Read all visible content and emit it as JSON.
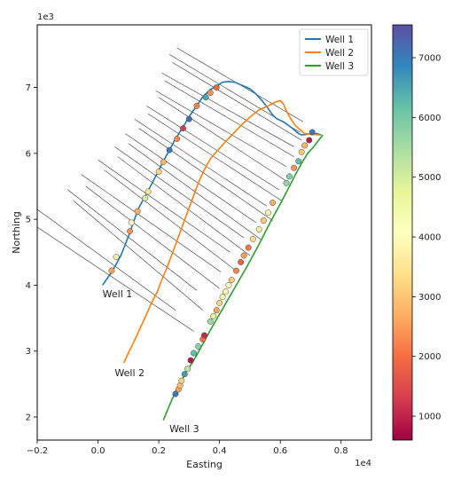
{
  "chart_data": {
    "type": "line",
    "xlabel": "Easting",
    "ylabel": "Northing",
    "x_offset_label": "1e4",
    "y_offset_label": "1e3",
    "xlim": [
      -0.2,
      0.9
    ],
    "ylim": [
      1.65,
      7.95
    ],
    "xticks": [
      -0.2,
      0.0,
      0.2,
      0.4,
      0.6,
      0.8
    ],
    "xtick_labels": [
      "−0.2",
      "0.0",
      "0.2",
      "0.4",
      "0.6",
      "0.8"
    ],
    "yticks": [
      2,
      3,
      4,
      5,
      6,
      7
    ],
    "ytick_labels": [
      "2",
      "3",
      "4",
      "5",
      "6",
      "7"
    ],
    "legend_position": "top-right",
    "series": [
      {
        "name": "Well 1",
        "color": "#1f77b4",
        "label": "Well 1",
        "points": [
          [
            0.015,
            4.0
          ],
          [
            0.03,
            4.1
          ],
          [
            0.045,
            4.2
          ],
          [
            0.06,
            4.32
          ],
          [
            0.075,
            4.45
          ],
          [
            0.09,
            4.62
          ],
          [
            0.105,
            4.8
          ],
          [
            0.12,
            5.0
          ],
          [
            0.135,
            5.18
          ],
          [
            0.155,
            5.35
          ],
          [
            0.175,
            5.52
          ],
          [
            0.195,
            5.7
          ],
          [
            0.215,
            5.88
          ],
          [
            0.235,
            6.05
          ],
          [
            0.255,
            6.22
          ],
          [
            0.28,
            6.4
          ],
          [
            0.3,
            6.56
          ],
          [
            0.325,
            6.72
          ],
          [
            0.345,
            6.86
          ],
          [
            0.37,
            6.97
          ],
          [
            0.39,
            7.02
          ],
          [
            0.41,
            7.08
          ],
          [
            0.43,
            7.09
          ],
          [
            0.45,
            7.08
          ],
          [
            0.47,
            7.04
          ],
          [
            0.5,
            6.98
          ],
          [
            0.52,
            6.9
          ],
          [
            0.54,
            6.8
          ],
          [
            0.56,
            6.68
          ],
          [
            0.575,
            6.58
          ],
          [
            0.59,
            6.52
          ],
          [
            0.61,
            6.48
          ],
          [
            0.64,
            6.38
          ],
          [
            0.66,
            6.3
          ],
          [
            0.67,
            6.28
          ],
          [
            0.69,
            6.29
          ],
          [
            0.72,
            6.3
          ],
          [
            0.735,
            6.28
          ]
        ]
      },
      {
        "name": "Well 2",
        "color": "#ff7f0e",
        "label": "Well 2",
        "points": [
          [
            0.085,
            2.82
          ],
          [
            0.1,
            2.97
          ],
          [
            0.12,
            3.16
          ],
          [
            0.14,
            3.36
          ],
          [
            0.16,
            3.56
          ],
          [
            0.175,
            3.72
          ],
          [
            0.195,
            3.9
          ],
          [
            0.21,
            4.08
          ],
          [
            0.23,
            4.3
          ],
          [
            0.25,
            4.55
          ],
          [
            0.27,
            4.8
          ],
          [
            0.29,
            5.05
          ],
          [
            0.31,
            5.3
          ],
          [
            0.33,
            5.55
          ],
          [
            0.35,
            5.75
          ],
          [
            0.37,
            5.92
          ],
          [
            0.395,
            6.05
          ],
          [
            0.42,
            6.18
          ],
          [
            0.445,
            6.3
          ],
          [
            0.47,
            6.42
          ],
          [
            0.5,
            6.55
          ],
          [
            0.53,
            6.66
          ],
          [
            0.56,
            6.72
          ],
          [
            0.585,
            6.78
          ],
          [
            0.6,
            6.8
          ],
          [
            0.61,
            6.75
          ],
          [
            0.62,
            6.65
          ],
          [
            0.635,
            6.52
          ],
          [
            0.65,
            6.42
          ],
          [
            0.665,
            6.36
          ],
          [
            0.68,
            6.3
          ],
          [
            0.7,
            6.29
          ],
          [
            0.73,
            6.28
          ]
        ]
      },
      {
        "name": "Well 3",
        "color": "#2ca02c",
        "label": "Well 3",
        "points": [
          [
            0.215,
            1.95
          ],
          [
            0.23,
            2.12
          ],
          [
            0.245,
            2.28
          ],
          [
            0.26,
            2.42
          ],
          [
            0.275,
            2.55
          ],
          [
            0.29,
            2.68
          ],
          [
            0.31,
            2.82
          ],
          [
            0.33,
            2.98
          ],
          [
            0.35,
            3.15
          ],
          [
            0.37,
            3.32
          ],
          [
            0.39,
            3.48
          ],
          [
            0.41,
            3.64
          ],
          [
            0.43,
            3.8
          ],
          [
            0.45,
            3.96
          ],
          [
            0.47,
            4.12
          ],
          [
            0.49,
            4.28
          ],
          [
            0.51,
            4.45
          ],
          [
            0.53,
            4.62
          ],
          [
            0.55,
            4.8
          ],
          [
            0.57,
            4.98
          ],
          [
            0.59,
            5.15
          ],
          [
            0.61,
            5.32
          ],
          [
            0.63,
            5.5
          ],
          [
            0.65,
            5.68
          ],
          [
            0.67,
            5.85
          ],
          [
            0.69,
            6.0
          ],
          [
            0.71,
            6.1
          ],
          [
            0.73,
            6.22
          ],
          [
            0.74,
            6.28
          ]
        ]
      }
    ],
    "well_labels": [
      {
        "text": "Well 1",
        "x": 0.015,
        "y": 3.82
      },
      {
        "text": "Well 2",
        "x": 0.055,
        "y": 2.62
      },
      {
        "text": "Well 3",
        "x": 0.235,
        "y": 1.77
      }
    ],
    "cross_lines": [
      {
        "x1": -0.2,
        "y1": 5.15,
        "x2": 0.255,
        "y2": 3.62
      },
      {
        "x1": -0.2,
        "y1": 4.88,
        "x2": 0.315,
        "y2": 3.3
      },
      {
        "x1": -0.1,
        "y1": 5.45,
        "x2": 0.325,
        "y2": 3.92
      },
      {
        "x1": -0.08,
        "y1": 5.28,
        "x2": 0.345,
        "y2": 3.62
      },
      {
        "x1": -0.055,
        "y1": 5.68,
        "x2": 0.405,
        "y2": 4.2
      },
      {
        "x1": -0.04,
        "y1": 5.5,
        "x2": 0.4,
        "y2": 3.95
      },
      {
        "x1": 0.0,
        "y1": 5.9,
        "x2": 0.435,
        "y2": 4.5
      },
      {
        "x1": 0.02,
        "y1": 5.75,
        "x2": 0.46,
        "y2": 4.2
      },
      {
        "x1": 0.055,
        "y1": 6.1,
        "x2": 0.48,
        "y2": 4.72
      },
      {
        "x1": 0.065,
        "y1": 5.95,
        "x2": 0.5,
        "y2": 4.45
      },
      {
        "x1": 0.09,
        "y1": 6.3,
        "x2": 0.52,
        "y2": 4.95
      },
      {
        "x1": 0.1,
        "y1": 6.15,
        "x2": 0.54,
        "y2": 4.68
      },
      {
        "x1": 0.12,
        "y1": 6.52,
        "x2": 0.555,
        "y2": 5.2
      },
      {
        "x1": 0.135,
        "y1": 6.38,
        "x2": 0.575,
        "y2": 4.98
      },
      {
        "x1": 0.16,
        "y1": 6.72,
        "x2": 0.595,
        "y2": 5.45
      },
      {
        "x1": 0.165,
        "y1": 6.6,
        "x2": 0.605,
        "y2": 5.28
      },
      {
        "x1": 0.19,
        "y1": 6.95,
        "x2": 0.62,
        "y2": 5.8
      },
      {
        "x1": 0.2,
        "y1": 6.85,
        "x2": 0.63,
        "y2": 5.55
      },
      {
        "x1": 0.21,
        "y1": 7.22,
        "x2": 0.645,
        "y2": 6.1
      },
      {
        "x1": 0.22,
        "y1": 7.1,
        "x2": 0.645,
        "y2": 5.95
      },
      {
        "x1": 0.235,
        "y1": 7.5,
        "x2": 0.665,
        "y2": 6.32
      },
      {
        "x1": 0.245,
        "y1": 7.38,
        "x2": 0.67,
        "y2": 6.2
      },
      {
        "x1": 0.26,
        "y1": 7.6,
        "x2": 0.675,
        "y2": 6.48
      }
    ],
    "well1_markers": [
      {
        "x": 0.045,
        "y": 4.22,
        "v": 2600
      },
      {
        "x": 0.06,
        "y": 4.43,
        "v": 3700
      },
      {
        "x": 0.105,
        "y": 4.82,
        "v": 2400
      },
      {
        "x": 0.11,
        "y": 4.95,
        "v": 4100
      },
      {
        "x": 0.13,
        "y": 5.12,
        "v": 2700
      },
      {
        "x": 0.155,
        "y": 5.32,
        "v": 5000
      },
      {
        "x": 0.165,
        "y": 5.42,
        "v": 3500
      },
      {
        "x": 0.2,
        "y": 5.72,
        "v": 3200
      },
      {
        "x": 0.215,
        "y": 5.87,
        "v": 2800
      },
      {
        "x": 0.235,
        "y": 6.05,
        "v": 7000
      },
      {
        "x": 0.26,
        "y": 6.22,
        "v": 2300
      },
      {
        "x": 0.28,
        "y": 6.38,
        "v": 1300
      },
      {
        "x": 0.3,
        "y": 6.52,
        "v": 7200
      },
      {
        "x": 0.325,
        "y": 6.72,
        "v": 2200
      },
      {
        "x": 0.355,
        "y": 6.85,
        "v": 6500
      },
      {
        "x": 0.37,
        "y": 6.92,
        "v": 2400
      },
      {
        "x": 0.39,
        "y": 7.0,
        "v": 1900
      }
    ],
    "well3_markers": [
      {
        "x": 0.255,
        "y": 2.35,
        "v": 7100
      },
      {
        "x": 0.265,
        "y": 2.42,
        "v": 2600
      },
      {
        "x": 0.27,
        "y": 2.48,
        "v": 2900
      },
      {
        "x": 0.275,
        "y": 2.55,
        "v": 3200
      },
      {
        "x": 0.285,
        "y": 2.65,
        "v": 6600
      },
      {
        "x": 0.295,
        "y": 2.73,
        "v": 5200
      },
      {
        "x": 0.305,
        "y": 2.86,
        "v": 900
      },
      {
        "x": 0.315,
        "y": 2.97,
        "v": 6200
      },
      {
        "x": 0.33,
        "y": 3.07,
        "v": 5800
      },
      {
        "x": 0.345,
        "y": 3.18,
        "v": 2000
      },
      {
        "x": 0.35,
        "y": 3.24,
        "v": 1100
      },
      {
        "x": 0.37,
        "y": 3.45,
        "v": 5600
      },
      {
        "x": 0.38,
        "y": 3.53,
        "v": 4800
      },
      {
        "x": 0.39,
        "y": 3.62,
        "v": 2600
      },
      {
        "x": 0.4,
        "y": 3.73,
        "v": 3300
      },
      {
        "x": 0.41,
        "y": 3.82,
        "v": 4400
      },
      {
        "x": 0.42,
        "y": 3.9,
        "v": 3800
      },
      {
        "x": 0.43,
        "y": 4.0,
        "v": 4200
      },
      {
        "x": 0.44,
        "y": 4.08,
        "v": 3100
      },
      {
        "x": 0.455,
        "y": 4.22,
        "v": 2200
      },
      {
        "x": 0.47,
        "y": 4.35,
        "v": 1800
      },
      {
        "x": 0.48,
        "y": 4.45,
        "v": 2500
      },
      {
        "x": 0.495,
        "y": 4.57,
        "v": 2100
      },
      {
        "x": 0.51,
        "y": 4.7,
        "v": 3400
      },
      {
        "x": 0.53,
        "y": 4.85,
        "v": 3700
      },
      {
        "x": 0.545,
        "y": 4.98,
        "v": 3000
      },
      {
        "x": 0.56,
        "y": 5.1,
        "v": 4400
      },
      {
        "x": 0.575,
        "y": 5.25,
        "v": 2700
      },
      {
        "x": 0.62,
        "y": 5.55,
        "v": 5700
      },
      {
        "x": 0.63,
        "y": 5.65,
        "v": 5900
      },
      {
        "x": 0.645,
        "y": 5.78,
        "v": 2400
      },
      {
        "x": 0.66,
        "y": 5.88,
        "v": 6200
      },
      {
        "x": 0.67,
        "y": 6.02,
        "v": 3000
      },
      {
        "x": 0.68,
        "y": 6.12,
        "v": 2800
      },
      {
        "x": 0.695,
        "y": 6.2,
        "v": 900
      },
      {
        "x": 0.705,
        "y": 6.32,
        "v": 7100
      }
    ],
    "colorbar": {
      "min": 600,
      "max": 7550,
      "ticks": [
        1000,
        2000,
        3000,
        4000,
        5000,
        6000,
        7000
      ],
      "tick_labels": [
        "1000",
        "2000",
        "3000",
        "4000",
        "5000",
        "6000",
        "7000"
      ],
      "colormap": "Spectral"
    }
  }
}
